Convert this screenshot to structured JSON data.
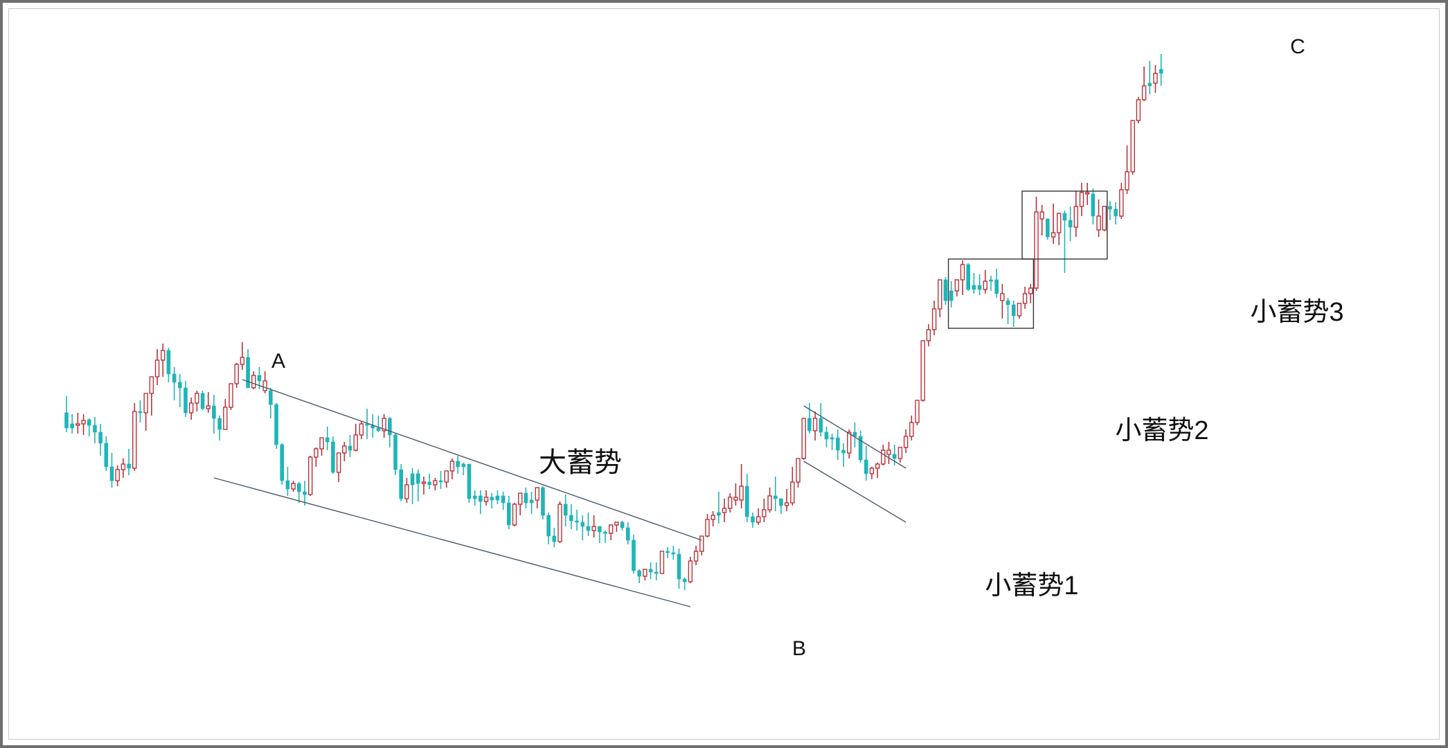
{
  "chart_data": {
    "type": "candlestick",
    "title": "",
    "xlabel": "",
    "ylabel": "",
    "grid": false,
    "ylim": [
      0,
      100
    ],
    "colors": {
      "up": "#b8323a",
      "down": "#1fb5b8",
      "line": "#4a5a6a",
      "box": "#333333"
    },
    "candles": [
      [
        40.4,
        42.8,
        38.2,
        37.6,
        "d"
      ],
      [
        38.2,
        40.2,
        38.8,
        37.4,
        "d"
      ],
      [
        38.8,
        40.4,
        38.8,
        37.4,
        "u"
      ],
      [
        38.8,
        40.2,
        39.3,
        37.2,
        "u"
      ],
      [
        39.4,
        39.6,
        38.6,
        37.0,
        "d"
      ],
      [
        38.6,
        39.8,
        37.6,
        36.0,
        "d"
      ],
      [
        37.6,
        38.8,
        36.0,
        34.2,
        "d"
      ],
      [
        36.0,
        37.0,
        32.6,
        32.0,
        "d"
      ],
      [
        32.6,
        34.6,
        30.6,
        29.6,
        "d"
      ],
      [
        30.6,
        32.8,
        32.2,
        29.8,
        "u"
      ],
      [
        32.2,
        33.8,
        33.0,
        31.0,
        "u"
      ],
      [
        33.0,
        35.2,
        32.4,
        31.4,
        "d"
      ],
      [
        32.4,
        41.8,
        40.6,
        32.0,
        "u"
      ],
      [
        40.6,
        42.2,
        40.4,
        39.0,
        "d"
      ],
      [
        40.4,
        43.0,
        43.2,
        37.8,
        "u"
      ],
      [
        43.2,
        44.4,
        45.6,
        40.0,
        "u"
      ],
      [
        45.6,
        49.6,
        48.0,
        44.4,
        "u"
      ],
      [
        48.0,
        50.4,
        49.4,
        45.6,
        "u"
      ],
      [
        49.4,
        49.8,
        46.0,
        44.8,
        "d"
      ],
      [
        46.0,
        47.0,
        44.8,
        42.2,
        "d"
      ],
      [
        44.8,
        46.0,
        44.0,
        41.2,
        "d"
      ],
      [
        44.0,
        45.0,
        40.4,
        39.8,
        "d"
      ],
      [
        40.4,
        42.6,
        41.8,
        39.4,
        "u"
      ],
      [
        41.8,
        43.6,
        43.2,
        40.6,
        "u"
      ],
      [
        43.2,
        43.6,
        41.0,
        40.8,
        "d"
      ],
      [
        41.0,
        43.4,
        41.4,
        40.4,
        "u"
      ],
      [
        41.4,
        43.0,
        39.6,
        37.4,
        "d"
      ],
      [
        39.6,
        40.0,
        38.0,
        36.4,
        "d"
      ],
      [
        38.0,
        42.4,
        41.2,
        38.0,
        "u"
      ],
      [
        41.2,
        43.4,
        44.6,
        40.8,
        "u"
      ],
      [
        44.6,
        47.6,
        47.4,
        44.0,
        "u"
      ],
      [
        47.4,
        50.6,
        48.4,
        46.6,
        "u"
      ],
      [
        48.4,
        49.6,
        44.0,
        44.2,
        "d"
      ],
      [
        44.0,
        46.4,
        45.8,
        43.8,
        "u"
      ],
      [
        45.8,
        47.0,
        45.0,
        43.8,
        "d"
      ],
      [
        45.0,
        46.4,
        43.6,
        43.2,
        "u"
      ],
      [
        43.6,
        44.0,
        41.6,
        39.6,
        "d"
      ],
      [
        41.6,
        41.8,
        35.8,
        35.2,
        "d"
      ],
      [
        35.8,
        36.0,
        30.6,
        30.0,
        "d"
      ],
      [
        30.6,
        32.6,
        29.4,
        28.4,
        "d"
      ],
      [
        29.4,
        30.6,
        30.2,
        29.0,
        "u"
      ],
      [
        30.2,
        30.4,
        29.0,
        27.4,
        "d"
      ],
      [
        29.0,
        30.6,
        28.6,
        27.0,
        "d"
      ],
      [
        28.6,
        34.2,
        34.0,
        28.4,
        "u"
      ],
      [
        34.0,
        35.4,
        35.2,
        32.6,
        "u"
      ],
      [
        35.2,
        36.8,
        36.8,
        34.2,
        "u"
      ],
      [
        36.8,
        38.4,
        36.2,
        35.0,
        "d"
      ],
      [
        36.2,
        37.0,
        31.8,
        31.6,
        "d"
      ],
      [
        31.8,
        33.0,
        34.6,
        30.4,
        "u"
      ],
      [
        34.6,
        36.2,
        35.6,
        33.4,
        "u"
      ],
      [
        35.6,
        37.2,
        35.0,
        34.0,
        "d"
      ],
      [
        35.0,
        38.8,
        37.2,
        34.8,
        "u"
      ],
      [
        37.2,
        39.2,
        38.8,
        36.6,
        "u"
      ],
      [
        38.8,
        41.0,
        38.6,
        36.6,
        "d"
      ],
      [
        38.6,
        40.2,
        38.2,
        36.8,
        "d"
      ],
      [
        38.2,
        40.0,
        37.8,
        37.6,
        "d"
      ],
      [
        37.8,
        40.2,
        39.6,
        36.8,
        "u"
      ],
      [
        39.6,
        39.8,
        37.2,
        35.4,
        "d"
      ],
      [
        37.2,
        37.4,
        32.2,
        31.4,
        "d"
      ],
      [
        32.2,
        33.0,
        28.0,
        27.6,
        "d"
      ],
      [
        28.0,
        31.0,
        30.0,
        27.4,
        "u"
      ],
      [
        30.0,
        32.4,
        31.6,
        27.2,
        "d"
      ],
      [
        31.6,
        32.2,
        30.2,
        27.6,
        "d"
      ],
      [
        30.2,
        31.2,
        30.4,
        28.6,
        "u"
      ],
      [
        30.4,
        31.6,
        30.0,
        29.4,
        "d"
      ],
      [
        30.0,
        31.0,
        30.6,
        29.2,
        "u"
      ],
      [
        30.6,
        32.0,
        30.4,
        29.4,
        "d"
      ],
      [
        30.4,
        31.4,
        32.0,
        29.6,
        "u"
      ],
      [
        32.0,
        33.8,
        33.4,
        30.8,
        "u"
      ],
      [
        33.4,
        34.2,
        32.6,
        31.6,
        "d"
      ],
      [
        32.6,
        33.2,
        33.0,
        31.4,
        "d"
      ],
      [
        33.0,
        33.0,
        28.0,
        27.4,
        "d"
      ],
      [
        28.0,
        29.2,
        28.4,
        27.0,
        "d"
      ],
      [
        28.4,
        29.2,
        27.6,
        25.8,
        "d"
      ],
      [
        27.6,
        29.2,
        28.2,
        27.0,
        "u"
      ],
      [
        28.2,
        28.8,
        27.8,
        26.6,
        "d"
      ],
      [
        27.8,
        29.2,
        28.4,
        27.2,
        "d"
      ],
      [
        28.4,
        29.0,
        27.4,
        26.4,
        "d"
      ],
      [
        27.4,
        28.4,
        24.2,
        23.6,
        "d"
      ],
      [
        24.2,
        27.4,
        27.2,
        24.0,
        "u"
      ],
      [
        27.2,
        27.8,
        28.8,
        25.6,
        "u"
      ],
      [
        28.8,
        29.6,
        27.4,
        26.6,
        "d"
      ],
      [
        27.4,
        29.0,
        27.8,
        25.8,
        "d"
      ],
      [
        27.8,
        29.0,
        29.6,
        26.6,
        "u"
      ],
      [
        29.6,
        29.8,
        25.6,
        25.0,
        "d"
      ],
      [
        25.6,
        26.0,
        22.6,
        21.4,
        "d"
      ],
      [
        22.6,
        23.8,
        21.8,
        21.0,
        "d"
      ],
      [
        21.8,
        27.6,
        27.2,
        21.6,
        "u"
      ],
      [
        27.2,
        28.6,
        25.6,
        24.0,
        "d"
      ],
      [
        25.6,
        27.2,
        24.8,
        23.6,
        "d"
      ],
      [
        24.8,
        26.4,
        24.6,
        23.4,
        "d"
      ],
      [
        24.6,
        25.6,
        24.0,
        22.0,
        "d"
      ],
      [
        24.0,
        26.0,
        23.4,
        22.6,
        "d"
      ],
      [
        23.4,
        25.6,
        24.0,
        22.4,
        "u"
      ],
      [
        24.0,
        24.0,
        23.2,
        21.6,
        "d"
      ],
      [
        23.2,
        23.4,
        23.0,
        21.6,
        "d"
      ],
      [
        23.0,
        23.0,
        24.2,
        22.0,
        "u"
      ],
      [
        24.2,
        24.4,
        24.6,
        23.2,
        "u"
      ],
      [
        24.6,
        24.8,
        23.8,
        23.4,
        "d"
      ],
      [
        23.8,
        24.6,
        22.0,
        21.4,
        "d"
      ],
      [
        22.0,
        22.8,
        17.6,
        17.2,
        "d"
      ],
      [
        17.6,
        17.8,
        16.8,
        15.8,
        "d"
      ],
      [
        16.8,
        17.8,
        17.8,
        16.2,
        "u"
      ],
      [
        17.8,
        18.8,
        17.4,
        16.4,
        "d"
      ],
      [
        17.4,
        18.8,
        17.2,
        16.2,
        "d"
      ],
      [
        17.2,
        20.4,
        20.4,
        17.2,
        "u"
      ],
      [
        20.4,
        21.0,
        20.2,
        19.4,
        "d"
      ],
      [
        20.2,
        21.2,
        20.0,
        19.2,
        "d"
      ],
      [
        20.0,
        20.8,
        16.4,
        15.0,
        "d"
      ],
      [
        16.4,
        16.6,
        16.0,
        14.8,
        "d"
      ],
      [
        16.0,
        19.6,
        19.0,
        15.8,
        "u"
      ],
      [
        19.0,
        21.2,
        20.4,
        18.4,
        "u"
      ],
      [
        20.4,
        22.2,
        22.6,
        19.8,
        "u"
      ],
      [
        22.6,
        25.8,
        25.0,
        22.4,
        "u"
      ],
      [
        25.0,
        26.2,
        25.6,
        24.0,
        "u"
      ],
      [
        25.6,
        29.0,
        26.0,
        24.4,
        "d"
      ],
      [
        26.0,
        28.0,
        26.6,
        24.6,
        "u"
      ],
      [
        26.6,
        28.8,
        28.2,
        26.0,
        "u"
      ],
      [
        28.2,
        30.2,
        27.8,
        27.0,
        "u"
      ],
      [
        27.8,
        33.0,
        29.8,
        26.6,
        "u"
      ],
      [
        29.8,
        31.6,
        25.4,
        24.6,
        "d"
      ],
      [
        25.4,
        26.0,
        24.6,
        23.8,
        "d"
      ],
      [
        24.6,
        26.6,
        25.4,
        24.2,
        "u"
      ],
      [
        25.4,
        28.0,
        26.4,
        24.6,
        "u"
      ],
      [
        26.4,
        29.6,
        28.4,
        26.0,
        "u"
      ],
      [
        28.4,
        31.2,
        28.0,
        26.2,
        "d"
      ],
      [
        28.0,
        28.0,
        27.0,
        25.8,
        "d"
      ],
      [
        27.0,
        29.4,
        27.4,
        26.2,
        "u"
      ],
      [
        27.4,
        32.6,
        30.4,
        27.0,
        "u"
      ],
      [
        30.4,
        33.6,
        33.8,
        29.6,
        "u"
      ],
      [
        33.8,
        36.6,
        39.6,
        33.6,
        "u"
      ],
      [
        39.6,
        41.8,
        37.8,
        37.4,
        "d"
      ],
      [
        37.8,
        40.6,
        39.6,
        36.4,
        "u"
      ],
      [
        39.6,
        41.8,
        37.6,
        37.0,
        "d"
      ],
      [
        37.6,
        38.4,
        36.6,
        35.4,
        "d"
      ],
      [
        36.6,
        37.4,
        36.8,
        35.0,
        "d"
      ],
      [
        36.8,
        38.0,
        35.0,
        33.6,
        "d"
      ],
      [
        35.0,
        36.0,
        34.6,
        32.6,
        "d"
      ],
      [
        34.6,
        38.0,
        37.6,
        33.8,
        "u"
      ],
      [
        37.6,
        39.0,
        37.0,
        35.4,
        "d"
      ],
      [
        37.0,
        37.8,
        33.6,
        33.2,
        "d"
      ],
      [
        33.6,
        35.6,
        31.6,
        30.6,
        "d"
      ],
      [
        31.6,
        32.6,
        32.4,
        30.8,
        "u"
      ],
      [
        32.4,
        33.2,
        33.0,
        31.0,
        "u"
      ],
      [
        33.0,
        35.8,
        35.0,
        32.8,
        "u"
      ],
      [
        35.0,
        36.2,
        34.4,
        33.0,
        "u"
      ],
      [
        34.4,
        35.8,
        33.8,
        32.8,
        "d"
      ],
      [
        33.8,
        35.4,
        35.4,
        33.2,
        "u"
      ],
      [
        35.4,
        38.0,
        37.0,
        34.6,
        "u"
      ],
      [
        37.0,
        40.0,
        39.0,
        36.4,
        "u"
      ],
      [
        39.0,
        42.2,
        42.2,
        38.6,
        "u"
      ],
      [
        42.2,
        47.4,
        50.8,
        42.0,
        "u"
      ],
      [
        50.8,
        53.2,
        52.4,
        50.0,
        "u"
      ],
      [
        52.4,
        56.6,
        55.4,
        51.6,
        "u"
      ],
      [
        55.4,
        58.6,
        59.6,
        54.2,
        "u"
      ],
      [
        59.6,
        60.0,
        56.6,
        56.0,
        "d"
      ],
      [
        56.6,
        59.4,
        58.0,
        55.6,
        "d"
      ],
      [
        58.0,
        58.6,
        59.6,
        57.2,
        "u"
      ],
      [
        59.6,
        62.4,
        61.8,
        57.4,
        "u"
      ],
      [
        61.8,
        62.0,
        58.2,
        58.0,
        "d"
      ],
      [
        58.2,
        60.6,
        58.8,
        57.6,
        "d"
      ],
      [
        58.8,
        60.4,
        58.2,
        57.4,
        "d"
      ],
      [
        58.2,
        61.0,
        59.4,
        57.6,
        "u"
      ],
      [
        59.4,
        60.2,
        59.6,
        58.0,
        "d"
      ],
      [
        59.6,
        61.2,
        57.6,
        57.0,
        "d"
      ],
      [
        57.6,
        59.0,
        56.6,
        54.0,
        "u"
      ],
      [
        56.6,
        57.0,
        56.0,
        53.2,
        "d"
      ],
      [
        56.0,
        56.6,
        54.4,
        52.8,
        "d"
      ],
      [
        54.4,
        55.6,
        56.2,
        54.0,
        "u"
      ],
      [
        56.2,
        58.6,
        57.6,
        55.4,
        "u"
      ],
      [
        57.6,
        59.0,
        58.4,
        56.2,
        "u"
      ],
      [
        58.4,
        71.6,
        69.4,
        58.0,
        "u"
      ],
      [
        69.4,
        70.4,
        68.4,
        66.0,
        "u"
      ],
      [
        68.4,
        67.6,
        65.8,
        65.4,
        "d"
      ],
      [
        65.8,
        70.6,
        66.4,
        64.8,
        "u"
      ],
      [
        66.4,
        68.6,
        69.2,
        64.6,
        "u"
      ],
      [
        69.2,
        69.6,
        68.2,
        60.6,
        "d"
      ],
      [
        68.2,
        70.2,
        67.2,
        65.2,
        "d"
      ],
      [
        67.2,
        72.4,
        70.2,
        65.8,
        "u"
      ],
      [
        70.2,
        73.6,
        72.2,
        68.8,
        "u"
      ],
      [
        72.2,
        73.6,
        72.0,
        70.4,
        "u"
      ],
      [
        72.0,
        72.8,
        68.8,
        67.6,
        "d"
      ],
      [
        68.8,
        71.2,
        66.8,
        65.8,
        "u"
      ],
      [
        66.8,
        70.0,
        70.2,
        66.6,
        "u"
      ],
      [
        70.2,
        71.0,
        69.8,
        68.2,
        "d"
      ],
      [
        69.8,
        70.8,
        68.8,
        67.6,
        "d"
      ],
      [
        68.8,
        73.6,
        72.6,
        68.4,
        "u"
      ],
      [
        72.6,
        79.0,
        75.2,
        72.0,
        "u"
      ],
      [
        75.2,
        81.4,
        82.6,
        74.8,
        "u"
      ],
      [
        82.6,
        86.0,
        85.6,
        82.2,
        "u"
      ],
      [
        85.6,
        90.4,
        87.6,
        85.4,
        "u"
      ],
      [
        87.6,
        91.2,
        88.0,
        86.4,
        "d"
      ],
      [
        88.0,
        90.6,
        89.4,
        86.6,
        "u"
      ],
      [
        89.4,
        92.2,
        90.0,
        87.6,
        "d"
      ]
    ],
    "annotations": [
      {
        "label": "A"
      },
      {
        "label": "B"
      },
      {
        "label": "C"
      },
      {
        "label": "大蓄势"
      },
      {
        "label": "小蓄势1"
      },
      {
        "label": "小蓄势2"
      },
      {
        "label": "小蓄势3"
      }
    ],
    "trendlines": [
      {
        "name": "big-consolidation-upper",
        "from": [
          31,
          45.2
        ],
        "to": [
          112,
          22.0
        ]
      },
      {
        "name": "big-consolidation-lower",
        "from": [
          26,
          31.0
        ],
        "to": [
          110,
          12.4
        ]
      },
      {
        "name": "small-consolidation-1-upper",
        "from": [
          130,
          41.4
        ],
        "to": [
          148,
          32.4
        ]
      },
      {
        "name": "small-consolidation-1-lower",
        "from": [
          130,
          33.4
        ],
        "to": [
          148,
          24.6
        ]
      }
    ],
    "boxes": [
      {
        "name": "small-consolidation-2-box",
        "from": [
          155.5,
          62.6
        ],
        "to": [
          170.5,
          52.6
        ]
      },
      {
        "name": "small-consolidation-3-box",
        "from": [
          168.5,
          72.4
        ],
        "to": [
          183.5,
          62.6
        ]
      }
    ]
  }
}
